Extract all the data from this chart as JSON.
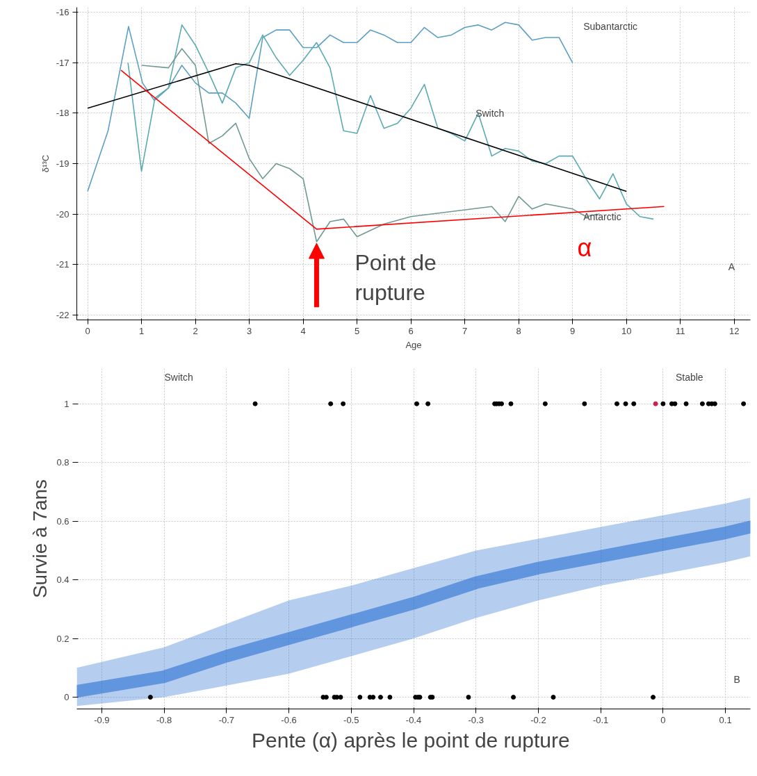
{
  "chart_data": [
    {
      "type": "line",
      "xlabel": "Age",
      "ylabel": "δ¹³C",
      "xlim": [
        -0.2,
        12.3
      ],
      "ylim": [
        -22.1,
        -15.9
      ],
      "xticks": [
        0,
        1,
        2,
        3,
        4,
        5,
        6,
        7,
        8,
        9,
        10,
        11,
        12
      ],
      "yticks": [
        -22,
        -21,
        -20,
        -19,
        -18,
        -17,
        -16
      ],
      "grid": true,
      "line_style": "solid",
      "series": [
        {
          "color": "#5b9fc4",
          "x": [
            0,
            0.38,
            0.76,
            1.02,
            1.24,
            1.5,
            1.75,
            2,
            2.25,
            2.5,
            2.75,
            3,
            3.25,
            3.5,
            3.75,
            4,
            4.25,
            4.5,
            4.75,
            5,
            5.25,
            5.5,
            5.75,
            6,
            6.25,
            6.5,
            6.75,
            7,
            7.25,
            7.5,
            7.75,
            8,
            8.25,
            8.5,
            8.75,
            9
          ],
          "values": [
            -19.55,
            -18.35,
            -16.28,
            -17.4,
            -17.75,
            -17.5,
            -17.05,
            -17.4,
            -17.6,
            -17.6,
            -17.8,
            -18.1,
            -16.5,
            -16.35,
            -16.35,
            -16.7,
            -16.7,
            -16.45,
            -16.6,
            -16.6,
            -16.35,
            -16.45,
            -16.6,
            -16.6,
            -16.3,
            -16.5,
            -16.45,
            -16.3,
            -16.25,
            -16.35,
            -16.2,
            -16.25,
            -16.55,
            -16.5,
            -16.5,
            -17.0
          ]
        },
        {
          "color": "#5aaab2",
          "x": [
            0.75,
            1,
            1.25,
            1.5,
            1.75,
            2,
            2.25,
            2.5,
            2.75,
            3,
            3.25,
            3.5,
            3.75,
            4,
            4.25,
            4.5,
            4.75,
            5,
            5.25,
            5.5,
            5.75,
            6,
            6.25,
            6.5,
            6.75,
            7,
            7.25,
            7.5,
            7.75,
            8,
            8.25,
            8.5,
            8.75,
            9,
            9.25,
            9.5,
            9.75,
            10,
            10.25,
            10.5
          ],
          "values": [
            -17.0,
            -19.15,
            -17.7,
            -17.5,
            -16.25,
            -16.65,
            -17.2,
            -17.8,
            -17.1,
            -17.0,
            -16.45,
            -16.9,
            -17.25,
            -16.95,
            -16.6,
            -17.1,
            -18.35,
            -18.4,
            -17.65,
            -18.3,
            -18.2,
            -17.9,
            -17.43,
            -18.3,
            -18.4,
            -18.55,
            -18.0,
            -18.85,
            -18.7,
            -18.75,
            -18.95,
            -19.0,
            -18.85,
            -18.85,
            -19.3,
            -19.7,
            -19.2,
            -19.8,
            -20.05,
            -20.1
          ]
        },
        {
          "color": "#6f9a94",
          "x": [
            1,
            1.5,
            1.75,
            2,
            2.25,
            2.5,
            2.75,
            3,
            3.25,
            3.5,
            3.75,
            4,
            4.25,
            4.5,
            4.75,
            5,
            5.5,
            6,
            7.5,
            7.75,
            8,
            8.25,
            8.5,
            9,
            9.25,
            9.5
          ],
          "values": [
            -17.05,
            -17.1,
            -16.72,
            -17.05,
            -18.6,
            -18.45,
            -18.2,
            -18.9,
            -19.3,
            -19.0,
            -19.1,
            -19.3,
            -20.55,
            -20.15,
            -20.1,
            -20.45,
            -20.2,
            -20.05,
            -19.85,
            -20.15,
            -19.65,
            -19.9,
            -19.8,
            -19.9,
            -20.05,
            -20.0
          ]
        },
        {
          "color": "#000000",
          "x": [
            0,
            2.75,
            3,
            10
          ],
          "values": [
            -17.9,
            -17.02,
            -17.05,
            -19.55
          ]
        },
        {
          "name": "α",
          "color": "#ff0000",
          "x": [
            0.62,
            4.25,
            10.7
          ],
          "values": [
            -17.15,
            -20.3,
            -19.85
          ]
        }
      ],
      "annotations": [
        "Subantarctic",
        "Switch",
        "Antarctic",
        {
          "text": "Point de\nrupture",
          "x": 4.25,
          "y": -20.3
        },
        "A"
      ]
    },
    {
      "type": "scatter",
      "xlabel": "Pente  (α) après le point de rupture",
      "ylabel": "Survie à 7ans",
      "xlim": [
        -0.94,
        0.14
      ],
      "ylim": [
        -0.04,
        1.12
      ],
      "xticks": [
        -0.9,
        -0.8,
        -0.7,
        -0.6,
        -0.5,
        -0.4,
        -0.3,
        -0.2,
        -0.1,
        0,
        0.1
      ],
      "yticks": [
        0,
        0.2,
        0.4,
        0.6,
        0.8,
        1
      ],
      "grid": true,
      "series": [
        {
          "type": "line",
          "color": "#2a6fd0",
          "x": [
            -0.94,
            -0.8,
            -0.7,
            -0.6,
            -0.5,
            -0.4,
            -0.3,
            -0.2,
            -0.1,
            0,
            0.1,
            0.14
          ],
          "values": [
            0.02,
            0.07,
            0.14,
            0.2,
            0.26,
            0.32,
            0.39,
            0.44,
            0.48,
            0.52,
            0.56,
            0.58
          ],
          "lower": [
            -0.03,
            0.0,
            0.04,
            0.08,
            0.14,
            0.2,
            0.27,
            0.33,
            0.38,
            0.42,
            0.46,
            0.48
          ],
          "upper": [
            0.1,
            0.17,
            0.25,
            0.33,
            0.38,
            0.44,
            0.5,
            0.54,
            0.58,
            0.62,
            0.66,
            0.68
          ]
        },
        {
          "x": [
            -0.654,
            -0.533,
            -0.513,
            -0.395,
            -0.377,
            -0.27,
            -0.267,
            -0.263,
            -0.259,
            -0.244,
            -0.189,
            -0.126,
            -0.074,
            -0.06,
            -0.047,
            -0.012,
            0.0,
            0.014,
            0.019,
            0.037,
            0.063,
            0.073,
            0.078,
            0.083,
            0.129
          ],
          "values": [
            1,
            1,
            1,
            1,
            1,
            1,
            1,
            1,
            1,
            1,
            1,
            1,
            1,
            1,
            1,
            1,
            1,
            1,
            1,
            1,
            1,
            1,
            1,
            1,
            1
          ],
          "colors": [
            "#000000",
            "#000000",
            "#000000",
            "#000000",
            "#000000",
            "#000000",
            "#000000",
            "#000000",
            "#000000",
            "#000000",
            "#000000",
            "#000000",
            "#000000",
            "#000000",
            "#000000",
            "#d0204a",
            "#000000",
            "#000000",
            "#000000",
            "#000000",
            "#000000",
            "#000000",
            "#000000",
            "#000000",
            "#000000"
          ]
        },
        {
          "color": "#000000",
          "x": [
            -0.822,
            -0.545,
            -0.54,
            -0.527,
            -0.523,
            -0.517,
            -0.486,
            -0.47,
            -0.465,
            -0.453,
            -0.438,
            -0.397,
            -0.393,
            -0.39,
            -0.373,
            -0.37,
            -0.312,
            -0.24,
            -0.176,
            -0.016
          ],
          "values": [
            0,
            0,
            0,
            0,
            0,
            0,
            0,
            0,
            0,
            0,
            0,
            0,
            0,
            0,
            0,
            0,
            0,
            0,
            0,
            0
          ]
        }
      ],
      "annotations": [
        "Switch",
        "Stable",
        "B"
      ]
    }
  ]
}
